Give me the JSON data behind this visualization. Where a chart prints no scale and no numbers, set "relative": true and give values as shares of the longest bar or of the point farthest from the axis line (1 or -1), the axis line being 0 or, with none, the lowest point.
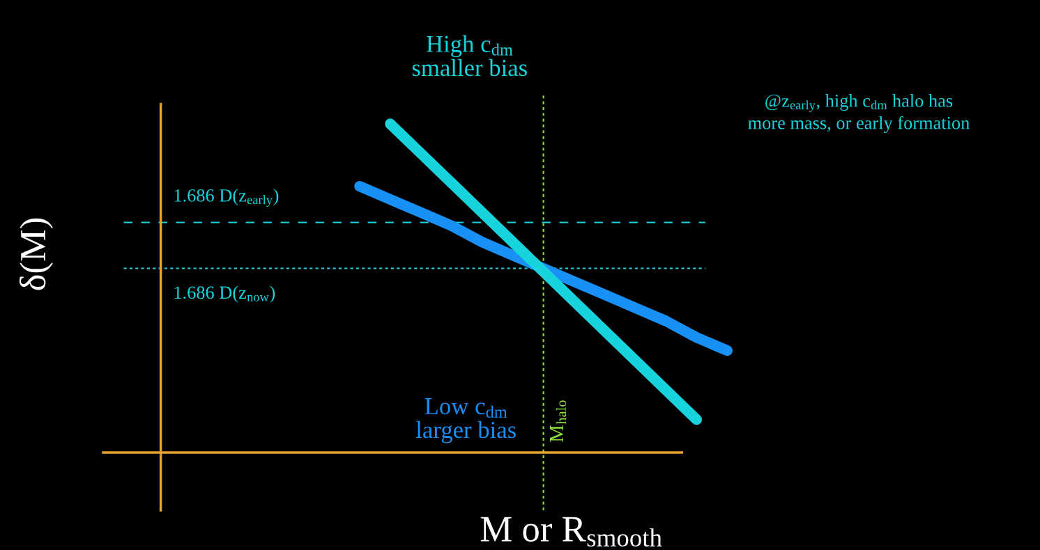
{
  "chart_data": {
    "type": "line",
    "relative": true,
    "xlabel": "M or R$_{smooth}$",
    "categories": [
      null,
      null,
      null,
      null,
      null,
      null,
      null,
      null,
      null,
      null,
      null,
      null,
      null
    ],
    "series": [
      {
        "name": "High c$_{dm}$\nsmaller bias",
        "color": "#17d4dc",
        "values": [
          null,
          1,
          0.91,
          0.82,
          0.73,
          0.64,
          0.55,
          0.46,
          0.37,
          0.28,
          0.19,
          0.1,
          null
        ]
      },
      {
        "name": "Low c$_{dm}$\nlarger bias",
        "color": "#1890f5",
        "values": [
          0.81,
          0.77,
          0.73,
          0.69,
          0.64,
          0.6,
          0.56,
          0.52,
          0.48,
          0.44,
          0.4,
          0.35,
          0.31
        ]
      }
    ],
    "ref_lines": [
      {
        "axis": "y",
        "value": 0.7,
        "label": "1.686 D(z$_{early}$)",
        "color": "#17d4dc",
        "line_style": "dashed"
      },
      {
        "axis": "y",
        "value": 0.56,
        "label": "1.686 D(z$_{now}$)",
        "color": "#17d4dc",
        "line_style": "dotted"
      }
    ],
    "annotations": [
      "@z$_{early}$, high c$_{dm}$ halo has\nmore mass, or early formation",
      "M$_{halo}$",
      "δ(M)"
    ],
    "legend": false,
    "line_style": "solid"
  }
}
